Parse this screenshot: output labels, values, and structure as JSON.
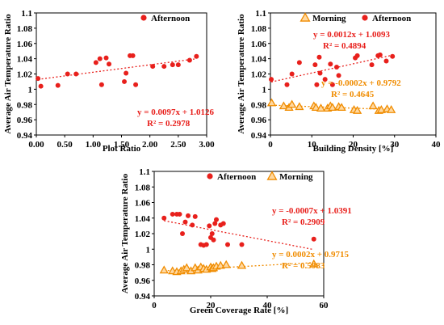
{
  "colors": {
    "afternoon": "#e8201c",
    "morning": "#f08c00",
    "morning_fill": "#ffd8a0",
    "axis": "#000000"
  },
  "chart_data": [
    {
      "type": "scatter",
      "xlabel": "Plot Ratio",
      "ylabel": "Average Air Temperature Ratio",
      "xlim": [
        0,
        3
      ],
      "ylim": [
        0.94,
        1.1
      ],
      "xticks": [
        "0.00",
        "0.50",
        "1.00",
        "1.50",
        "2.00",
        "2.50",
        "3.00"
      ],
      "yticks": [
        "0.94",
        "0.96",
        "0.98",
        "1",
        "1.02",
        "1.04",
        "1.06",
        "1.08",
        "1.1"
      ],
      "grid": false,
      "legend": "top-right",
      "series": [
        {
          "name": "Afternoon",
          "marker": "circle",
          "points": [
            [
              0.03,
              1.014
            ],
            [
              0.08,
              1.004
            ],
            [
              0.38,
              1.005
            ],
            [
              0.55,
              1.02
            ],
            [
              0.7,
              1.02
            ],
            [
              1.05,
              1.035
            ],
            [
              1.12,
              1.04
            ],
            [
              1.15,
              1.006
            ],
            [
              1.23,
              1.041
            ],
            [
              1.28,
              1.033
            ],
            [
              1.55,
              1.01
            ],
            [
              1.58,
              1.021
            ],
            [
              1.65,
              1.044
            ],
            [
              1.7,
              1.044
            ],
            [
              1.75,
              1.006
            ],
            [
              2.05,
              1.03
            ],
            [
              2.25,
              1.03
            ],
            [
              2.4,
              1.032
            ],
            [
              2.5,
              1.032
            ],
            [
              2.7,
              1.038
            ],
            [
              2.82,
              1.043
            ]
          ],
          "trendline": {
            "slope": 0.0097,
            "intercept": 1.0126,
            "equation": "y = 0.0097x + 1.0126",
            "r2": "R² = 0.2978"
          }
        }
      ]
    },
    {
      "type": "scatter",
      "xlabel": "Building Density [%]",
      "ylabel": "Average Air Temperature Ratio",
      "xlim": [
        0,
        40
      ],
      "ylim": [
        0.94,
        1.1
      ],
      "xticks": [
        "0",
        "10",
        "20",
        "30",
        "40"
      ],
      "yticks": [
        "0.94",
        "0.96",
        "0.98",
        "1",
        "1.02",
        "1.04",
        "1.06",
        "1.08",
        "1.1"
      ],
      "grid": false,
      "legend": "top-right",
      "series": [
        {
          "name": "Morning",
          "marker": "triangle",
          "points": [
            [
              0.3,
              0.982
            ],
            [
              3.2,
              0.978
            ],
            [
              4.5,
              0.976
            ],
            [
              5.2,
              0.98
            ],
            [
              7.0,
              0.977
            ],
            [
              10.5,
              0.978
            ],
            [
              11.0,
              0.976
            ],
            [
              12.2,
              0.975
            ],
            [
              13.8,
              0.975
            ],
            [
              14.5,
              0.978
            ],
            [
              15.0,
              0.976
            ],
            [
              16.5,
              0.977
            ],
            [
              17.2,
              0.976
            ],
            [
              20.2,
              0.973
            ],
            [
              21.0,
              0.972
            ],
            [
              24.8,
              0.978
            ],
            [
              26.2,
              0.972
            ],
            [
              26.8,
              0.973
            ],
            [
              28.2,
              0.974
            ],
            [
              29.2,
              0.973
            ]
          ],
          "trendline": {
            "slope": -0.0002,
            "intercept": 0.9792,
            "equation": "y = -0.0002x + 0.9792",
            "r2": "R² = 0.4645"
          }
        },
        {
          "name": "Afternoon",
          "marker": "circle",
          "points": [
            [
              0.2,
              1.013
            ],
            [
              4.0,
              1.006
            ],
            [
              5.2,
              1.02
            ],
            [
              7.0,
              1.035
            ],
            [
              10.8,
              1.032
            ],
            [
              11.2,
              1.006
            ],
            [
              11.8,
              1.042
            ],
            [
              12.0,
              1.021
            ],
            [
              13.2,
              1.013
            ],
            [
              14.5,
              1.033
            ],
            [
              15.0,
              1.006
            ],
            [
              16.0,
              1.029
            ],
            [
              16.5,
              1.018
            ],
            [
              20.5,
              1.041
            ],
            [
              21.0,
              1.044
            ],
            [
              24.5,
              1.032
            ],
            [
              26.0,
              1.044
            ],
            [
              26.5,
              1.045
            ],
            [
              28.0,
              1.037
            ],
            [
              29.5,
              1.043
            ]
          ],
          "trendline": {
            "slope": 0.0012,
            "intercept": 1.0093,
            "equation": "y = 0.0012x + 1.0093",
            "r2": "R² = 0.4894"
          }
        }
      ]
    },
    {
      "type": "scatter",
      "xlabel": "Green Coverage Rate [%]",
      "ylabel": "Average Air Temperature Ratio",
      "xlim": [
        0,
        60
      ],
      "ylim": [
        0.94,
        1.1
      ],
      "xticks": [
        "0",
        "20",
        "40",
        "60"
      ],
      "yticks": [
        "0.94",
        "0.96",
        "0.98",
        "1",
        "1.02",
        "1.04",
        "1.06",
        "1.08",
        "1.1"
      ],
      "grid": false,
      "legend": "top-center",
      "series": [
        {
          "name": "Afternoon",
          "marker": "circle",
          "points": [
            [
              3.5,
              1.04
            ],
            [
              6.5,
              1.045
            ],
            [
              8.0,
              1.045
            ],
            [
              9.0,
              1.045
            ],
            [
              10.0,
              1.02
            ],
            [
              11.0,
              1.035
            ],
            [
              12.0,
              1.043
            ],
            [
              13.5,
              1.031
            ],
            [
              14.5,
              1.042
            ],
            [
              16.5,
              1.006
            ],
            [
              17.5,
              1.005
            ],
            [
              18.5,
              1.006
            ],
            [
              19.5,
              1.03
            ],
            [
              20.0,
              1.015
            ],
            [
              20.5,
              1.02
            ],
            [
              21.0,
              1.012
            ],
            [
              21.5,
              1.033
            ],
            [
              22.0,
              1.038
            ],
            [
              23.5,
              1.031
            ],
            [
              24.5,
              1.033
            ],
            [
              26.0,
              1.006
            ],
            [
              31.0,
              1.006
            ],
            [
              56.5,
              1.013
            ]
          ],
          "trendline": {
            "slope": -0.0007,
            "intercept": 1.0391,
            "equation": "y = -0.0007x + 1.0391",
            "r2": "R² = 0.2909"
          }
        },
        {
          "name": "Morning",
          "marker": "triangle",
          "points": [
            [
              3.5,
              0.973
            ],
            [
              6.5,
              0.972
            ],
            [
              8.0,
              0.971
            ],
            [
              9.5,
              0.972
            ],
            [
              10.5,
              0.974
            ],
            [
              11.5,
              0.976
            ],
            [
              13.0,
              0.972
            ],
            [
              14.5,
              0.976
            ],
            [
              15.5,
              0.973
            ],
            [
              16.5,
              0.977
            ],
            [
              17.5,
              0.975
            ],
            [
              18.5,
              0.974
            ],
            [
              20.0,
              0.977
            ],
            [
              20.5,
              0.975
            ],
            [
              21.0,
              0.976
            ],
            [
              22.0,
              0.978
            ],
            [
              23.5,
              0.979
            ],
            [
              25.5,
              0.98
            ],
            [
              31.0,
              0.979
            ],
            [
              56.5,
              0.981
            ]
          ],
          "trendline": {
            "slope": 0.0002,
            "intercept": 0.9715,
            "equation": "y = 0.0002x + 0.9715",
            "r2": "R² = 0.5983"
          }
        }
      ]
    }
  ]
}
